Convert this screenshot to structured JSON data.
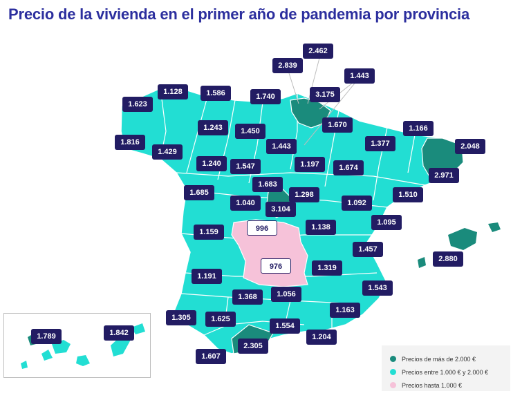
{
  "title": "Precio de la vivienda en el primer año de pandemia por provincia",
  "colors": {
    "high": "#1a8b7c",
    "mid": "#22ded3",
    "low": "#f6c2d9",
    "label_bg": "#221c63",
    "title": "#2c2f9e"
  },
  "legend": {
    "high": "Precios de más de 2.000 €",
    "mid": "Precios entre 1.000 € y 2.000 €",
    "low": "Precios hasta 1.000 €"
  },
  "provinces": {
    "a_coruna": "1.623",
    "lugo": "1.128",
    "asturias": "1.586",
    "cantabria": "1.740",
    "vizcaya": "2.839",
    "gipuzkoa": "2.462",
    "alava": "3.175",
    "navarra": "1.443",
    "pontevedra": "1.816",
    "ourense": "1.429",
    "leon": "1.243",
    "burgos": "1.450",
    "la_rioja": "1.670",
    "huesca": "1.166",
    "lleida": "1.377",
    "girona": "2.048",
    "barcelona": "2.971",
    "zamora": "1.240",
    "valladolid": "1.547",
    "soria": "1.443",
    "zaragoza": "1.197",
    "tarragona": "1.674",
    "salamanca": "1.685",
    "segovia": "1.683",
    "avila": "1.040",
    "madrid": "3.104",
    "guadalajara": "1.298",
    "teruel": "1.092",
    "castellon": "1.510",
    "caceres": "1.159",
    "toledo": "996",
    "cuenca": "1.138",
    "valencia": "1.095",
    "baleares": "2.880",
    "badajoz": "1.191",
    "ciudad_real": "976",
    "albacete": "1.319",
    "alicante": "1.457",
    "murcia": "1.543",
    "cordoba": "1.368",
    "jaen": "1.056",
    "almeria": "1.163",
    "huelva": "1.305",
    "sevilla": "1.625",
    "granada": "1.554",
    "malaga": "2.305",
    "cadiz": "1.607",
    "almeria_coast": "1.204",
    "santa_cruz_tenerife": "1.789",
    "las_palmas": "1.842"
  }
}
